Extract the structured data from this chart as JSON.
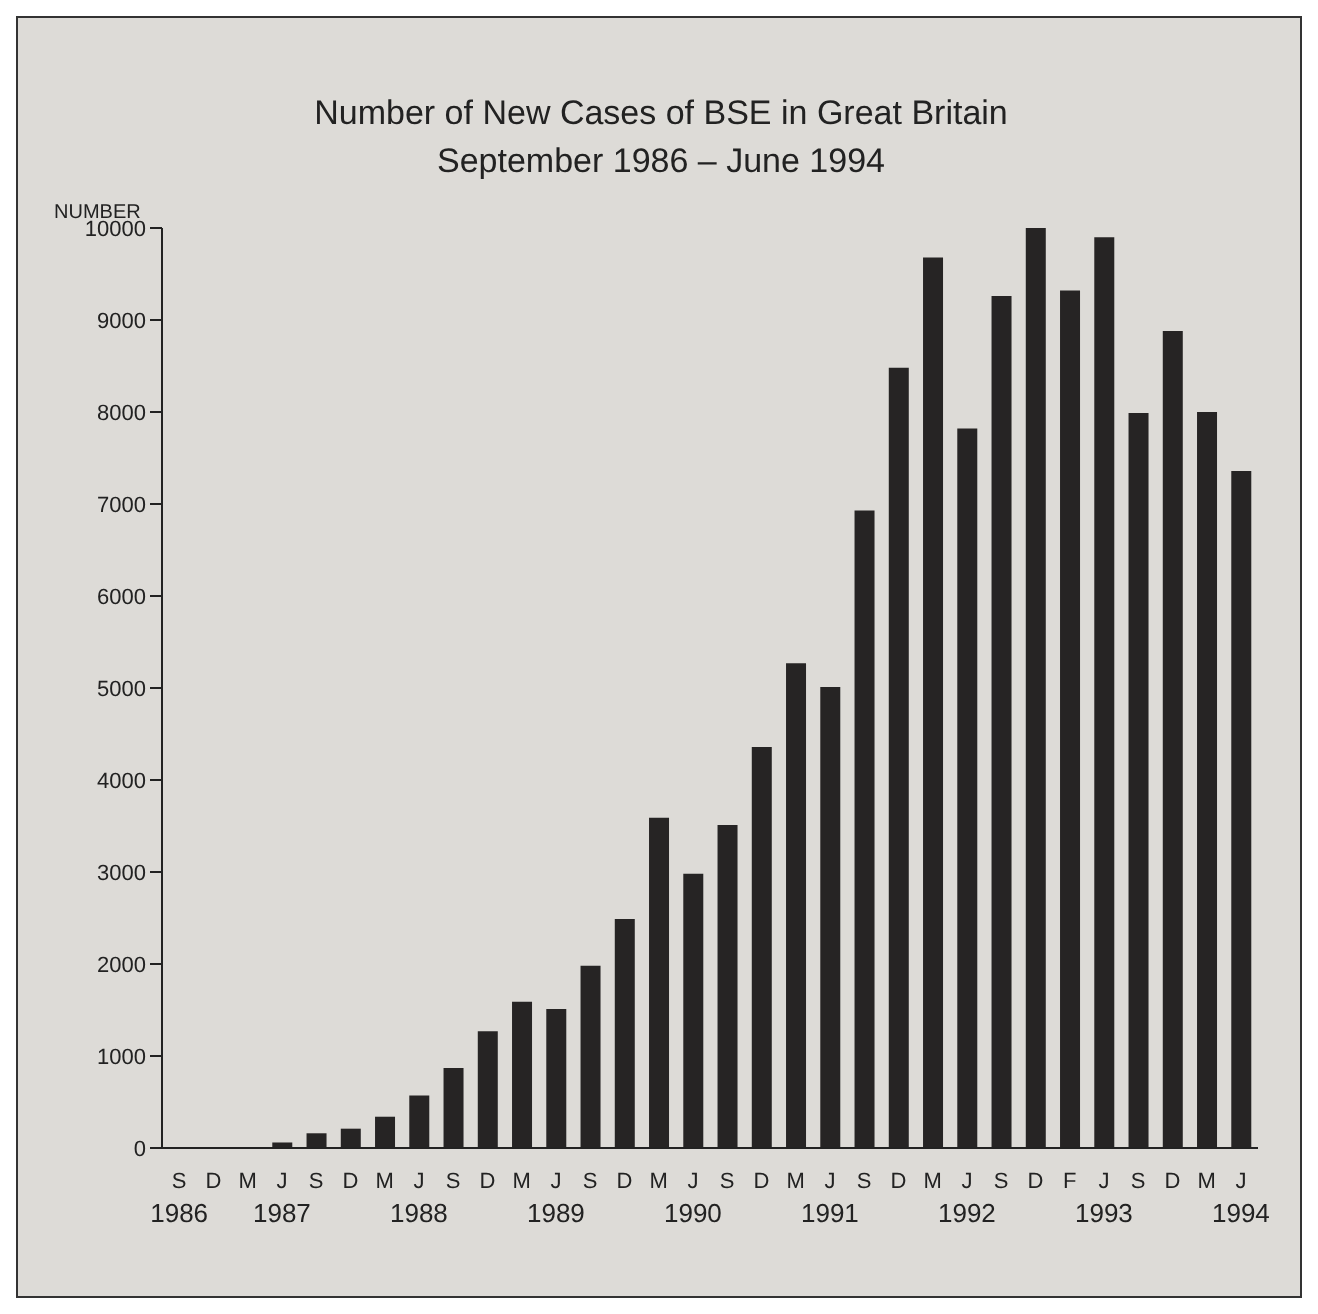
{
  "chart_data": {
    "type": "bar",
    "title": "Number of New Cases of BSE in Great Britain\nSeptember 1986 – June 1994",
    "ylabel": "NUMBER",
    "categories": [
      "S\n1986",
      "D",
      "M",
      "J\n1987",
      "S",
      "D",
      "M",
      "J\n1988",
      "S",
      "D",
      "M",
      "J\n1989",
      "S",
      "D",
      "M",
      "J\n1990",
      "S",
      "D",
      "M",
      "J\n1991",
      "S",
      "D",
      "M",
      "J\n1992",
      "S",
      "D",
      "F",
      "J\n1993",
      "S",
      "D",
      "M",
      "J\n1994"
    ],
    "values": [
      10,
      10,
      10,
      60,
      160,
      210,
      340,
      570,
      870,
      1270,
      1590,
      1510,
      1980,
      2490,
      3590,
      2980,
      3510,
      4360,
      5270,
      5010,
      6930,
      8480,
      9680,
      7820,
      9260,
      10000,
      9320,
      9900,
      7990,
      8880,
      8000,
      7360
    ],
    "color": "#262424",
    "ylim": [
      0,
      10000
    ],
    "yticks": [
      0,
      1000,
      2000,
      3000,
      4000,
      5000,
      6000,
      7000,
      8000,
      9000,
      10000
    ],
    "grid": false,
    "legend": false
  }
}
